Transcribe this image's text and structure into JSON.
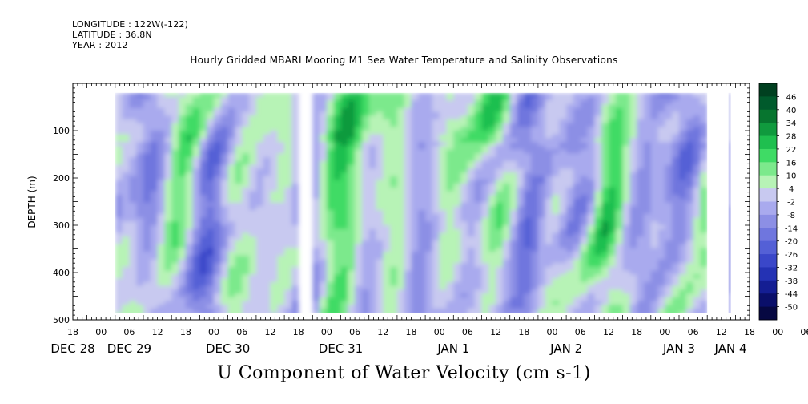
{
  "header": {
    "longitude": "LONGITUDE : 122W(-122)",
    "latitude": "LATITUDE : 36.8N",
    "year": "YEAR : 2012"
  },
  "chart_data": {
    "type": "heatmap",
    "title": "Hourly Gridded MBARI Mooring M1 Sea Water Temperature and Salinity Observations",
    "xlabel": "U Component of Water Velocity (cm s-1)",
    "ylabel": "DEPTH (m)",
    "ylim": [
      500,
      0
    ],
    "yticks": [
      100,
      200,
      300,
      400,
      500
    ],
    "x_range_hours": [
      -9,
      135
    ],
    "data_start_hour": 0,
    "data_end_hour": 131,
    "gaps_hours": [
      [
        0,
        0
      ],
      [
        40,
        40.6
      ],
      [
        126,
        130.5
      ]
    ],
    "data_depth_range": [
      20,
      486
    ],
    "x_hour_labels": [
      "18",
      "00",
      "06",
      "12",
      "18",
      "00",
      "06",
      "12",
      "18",
      "00",
      "06",
      "12",
      "18",
      "00",
      "06",
      "12",
      "18",
      "00",
      "06",
      "12",
      "18",
      "00",
      "06",
      "12",
      "18",
      "00",
      "06",
      "12",
      "18",
      "00",
      "06",
      "12"
    ],
    "x_day_labels": [
      {
        "label": "DEC 28",
        "hour": -9
      },
      {
        "label": "DEC 29",
        "hour": 3
      },
      {
        "label": "DEC 30",
        "hour": 24
      },
      {
        "label": "DEC 31",
        "hour": 48
      },
      {
        "label": "JAN  1",
        "hour": 72
      },
      {
        "label": "JAN  2",
        "hour": 96
      },
      {
        "label": "JAN  3",
        "hour": 120
      },
      {
        "label": "JAN  4",
        "hour": 131
      }
    ],
    "colorbar_levels": [
      "46",
      "40",
      "34",
      "28",
      "22",
      "16",
      "10",
      "4",
      "-2",
      "-8",
      "-14",
      "-20",
      "-26",
      "-32",
      "-38",
      "-44",
      "-50"
    ],
    "colorbar_colors": [
      "#004020",
      "#005a2c",
      "#07752f",
      "#109a3e",
      "#1fbf4f",
      "#3fdb65",
      "#7ce98c",
      "#b7f3b6",
      "#c8c9f0",
      "#a9aaee",
      "#8c8fe5",
      "#6f76de",
      "#5460d6",
      "#3a47c9",
      "#2432b4",
      "#141e93",
      "#0a0f6a",
      "#060842"
    ]
  }
}
